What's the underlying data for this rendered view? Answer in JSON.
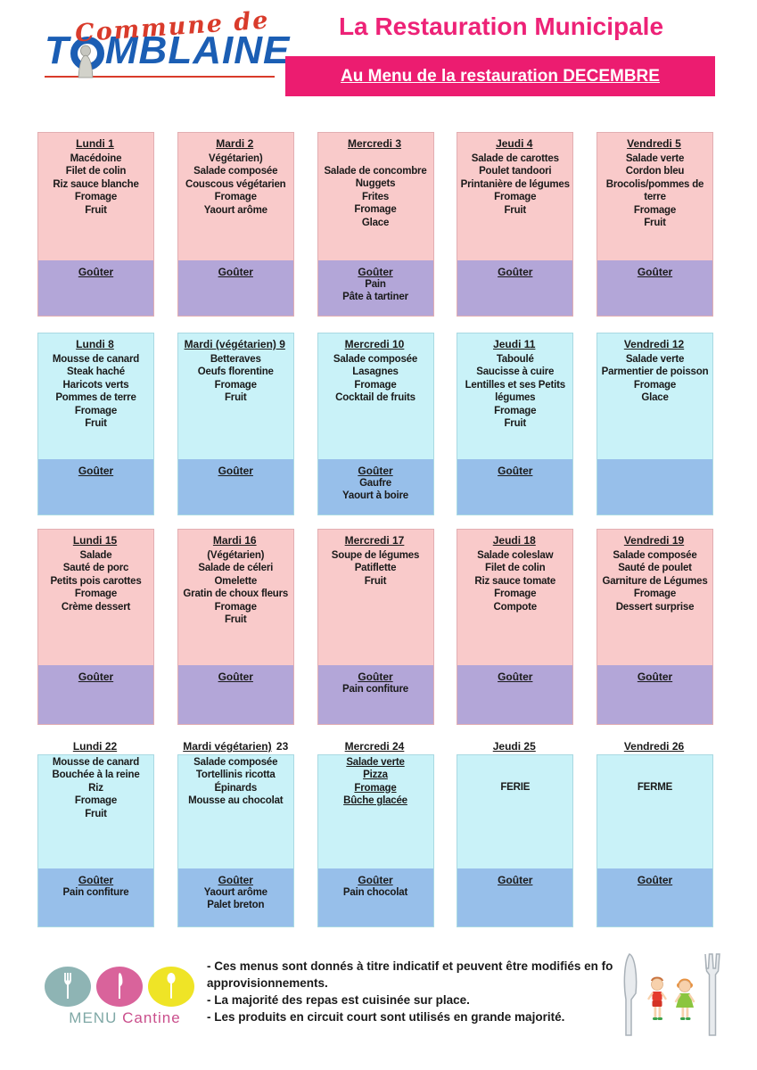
{
  "header": {
    "logo_top": "Commune de",
    "logo_main_first": "T",
    "logo_main_rest": "MBLAINE",
    "title": "La Restauration Municipale",
    "banner": "Au Menu de la restauration DECEMBRE"
  },
  "menu": {
    "weeks": [
      {
        "theme": "pink",
        "days": [
          {
            "title": "Lundi 1",
            "title_suffix": "",
            "items": [
              "Macédoine",
              "Filet de colin",
              "Riz sauce blanche",
              "Fromage",
              "Fruit"
            ],
            "snack_label": "Goûter",
            "snack_items": []
          },
          {
            "title": "Mardi  2",
            "title_suffix": "",
            "items": [
              "Végétarien)",
              "Salade composée",
              "Couscous végétarien",
              "Fromage",
              "Yaourt arôme"
            ],
            "snack_label": "Goûter",
            "snack_items": []
          },
          {
            "title": "Mercredi 3",
            "title_suffix": "",
            "items": [
              "",
              "Salade de concombre",
              "Nuggets",
              "Frites",
              "Fromage",
              "Glace"
            ],
            "snack_label": "Goûter",
            "snack_items": [
              "Pain",
              "Pâte à tartiner"
            ]
          },
          {
            "title": "Jeudi 4",
            "title_suffix": "",
            "items": [
              "Salade de carottes",
              "Poulet tandoori",
              "Printanière de légumes",
              "Fromage",
              "Fruit"
            ],
            "snack_label": "Goûter",
            "snack_items": []
          },
          {
            "title": "Vendredi 5",
            "title_suffix": "",
            "items": [
              "Salade verte",
              "Cordon bleu",
              "Brocolis/pommes de terre",
              "Fromage",
              "Fruit"
            ],
            "snack_label": "Goûter",
            "snack_items": []
          }
        ]
      },
      {
        "theme": "cyan",
        "days": [
          {
            "title": "Lundi 8",
            "title_suffix": "",
            "items": [
              "Mousse de canard",
              "Steak haché",
              "Haricots verts",
              "Pommes de terre",
              "Fromage",
              "Fruit"
            ],
            "snack_label": "Goûter",
            "snack_items": []
          },
          {
            "title": "Mardi  (végétarien) 9",
            "title_suffix": "",
            "items": [
              "Betteraves",
              "Oeufs florentine",
              "Fromage",
              "Fruit"
            ],
            "snack_label": "Goûter",
            "snack_items": []
          },
          {
            "title": "Mercredi 10",
            "title_suffix": "",
            "items": [
              "Salade composée",
              "Lasagnes",
              "Fromage",
              "Cocktail de fruits"
            ],
            "snack_label": "Goûter",
            "snack_items": [
              "Gaufre",
              "Yaourt à boire"
            ]
          },
          {
            "title": "Jeudi 11",
            "title_suffix": "",
            "items": [
              "Taboulé",
              "Saucisse à cuire",
              "Lentilles et ses Petits légumes",
              "Fromage",
              "Fruit"
            ],
            "snack_label": "Goûter",
            "snack_items": []
          },
          {
            "title": "Vendredi 12",
            "title_suffix": "",
            "items": [
              "Salade verte",
              "Parmentier de poisson",
              "Fromage",
              "Glace"
            ],
            "snack_label": "",
            "snack_items": []
          }
        ]
      },
      {
        "theme": "pink",
        "days": [
          {
            "title": "Lundi 15",
            "title_suffix": "",
            "items": [
              "Salade",
              "Sauté de porc",
              "Petits pois carottes",
              "Fromage",
              "Crème dessert"
            ],
            "snack_label": "Goûter",
            "snack_items": []
          },
          {
            "title": "Mardi 16",
            "title_suffix": "",
            "items": [
              "(Végétarien)",
              "Salade de céleri",
              "Omelette",
              "Gratin de choux fleurs",
              "Fromage",
              "Fruit"
            ],
            "snack_label": "Goûter",
            "snack_items": []
          },
          {
            "title": "Mercredi 17",
            "title_suffix": "",
            "items": [
              "Soupe de légumes",
              "Patiflette",
              "Fruit"
            ],
            "snack_label": "Goûter",
            "snack_items": [
              "Pain confiture"
            ]
          },
          {
            "title": "Jeudi 18",
            "title_suffix": "",
            "items": [
              "Salade coleslaw",
              "Filet de colin",
              "Riz sauce tomate",
              "Fromage",
              "Compote"
            ],
            "snack_label": "Goûter",
            "snack_items": []
          },
          {
            "title": "Vendredi 19",
            "title_suffix": "",
            "items": [
              "Salade composée",
              "Sauté de poulet",
              "Garniture de Légumes",
              "Fromage",
              "Dessert surprise"
            ],
            "snack_label": "Goûter",
            "snack_items": []
          }
        ]
      },
      {
        "theme": "cyan",
        "days": [
          {
            "title": "Lundi 22",
            "title_suffix": "",
            "items": [
              "Mousse de canard",
              "Bouchée à la reine",
              "Riz",
              "Fromage",
              "Fruit"
            ],
            "snack_label": "Goûter",
            "snack_items": [
              "Pain confiture"
            ]
          },
          {
            "title": "Mardi  végétarien)",
            "title_suffix": " 23",
            "items": [
              "Salade composée",
              "Tortellinis ricotta",
              "Épinards",
              "Mousse au chocolat"
            ],
            "snack_label": "Goûter",
            "snack_items": [
              "Yaourt arôme",
              "Palet breton"
            ]
          },
          {
            "title": "Mercredi 24",
            "title_suffix": "",
            "items_underline": true,
            "items": [
              "Salade verte",
              "Pizza",
              "Fromage",
              "Bûche glacée"
            ],
            "snack_label": "Goûter",
            "snack_items": [
              "Pain chocolat"
            ]
          },
          {
            "title": "Jeudi 25",
            "title_suffix": "",
            "items": [
              "",
              "",
              "FERIE"
            ],
            "snack_label": "Goûter",
            "snack_items": []
          },
          {
            "title": "Vendredi 26",
            "title_suffix": "",
            "items": [
              "",
              "",
              "FERME"
            ],
            "snack_label": "Goûter",
            "snack_items": []
          }
        ]
      }
    ]
  },
  "footer": {
    "logo": {
      "menu": "MENU",
      "cantine": "Cantine"
    },
    "notes": [
      "- Ces menus sont donnés à titre indicatif et peuvent être modifiés en fo",
      "approvisionnements.",
      "- La majorité des repas est cuisinée sur place.",
      "- Les produits en circuit court sont utilisés en grande majorité."
    ]
  },
  "colors": {
    "brand_pink": "#ec1c70",
    "title_pink": "#ed2277",
    "logo_blue": "#1b5eb4",
    "logo_red": "#d93b2b",
    "week_pink_bg": "#f9caca",
    "week_pink_snack": "#b3a6d8",
    "week_cyan_bg": "#c9f2f8",
    "week_cyan_snack": "#97bfea",
    "menu_teal": "#8eb4b4",
    "menu_pink": "#d9639b",
    "menu_yellow": "#efe426"
  }
}
